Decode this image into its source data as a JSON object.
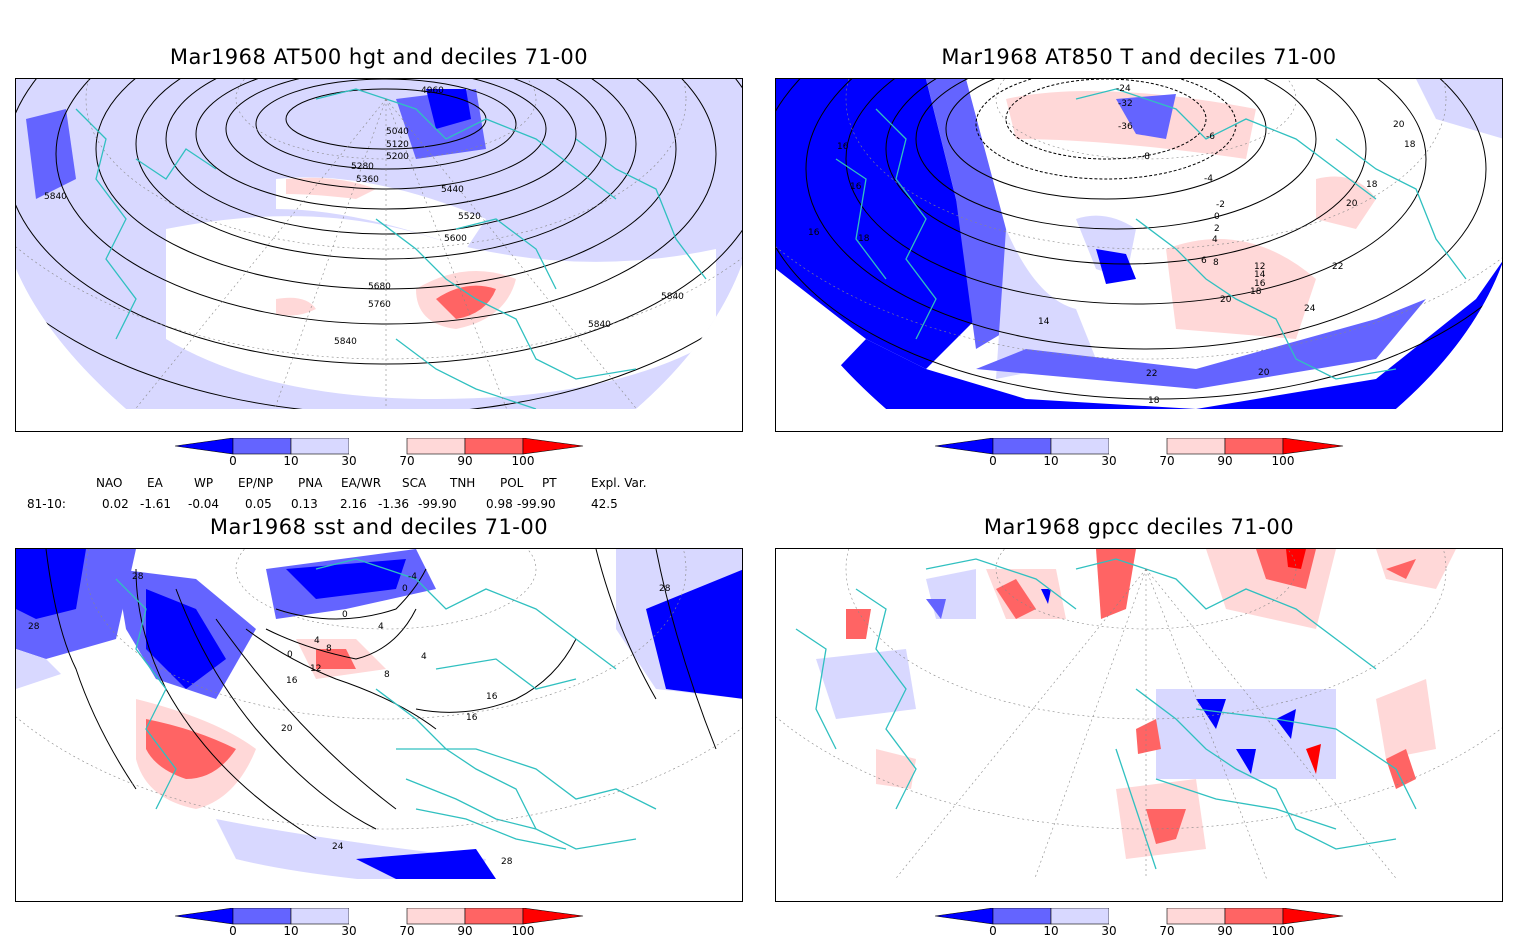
{
  "panels": [
    {
      "id": "p1",
      "title": "Mar1968 AT500 hgt and deciles 71-00",
      "contour_labels": [
        "4960",
        "5040",
        "5120",
        "5200",
        "5280",
        "5360",
        "5440",
        "5520",
        "5600",
        "5680",
        "5760",
        "5840",
        "5840",
        "5840",
        "5840"
      ]
    },
    {
      "id": "p2",
      "title": "Mar1968 AT850 T and deciles 71-00",
      "contour_labels": [
        "-24",
        "-32",
        "-36",
        "-8",
        "-6",
        "-4",
        "-2",
        "0",
        "2",
        "4",
        "6",
        "8",
        "12",
        "14",
        "16",
        "18",
        "20",
        "16",
        "16",
        "16",
        "18",
        "18",
        "18",
        "20",
        "20",
        "22",
        "24",
        "14",
        "22",
        "20",
        "18"
      ]
    },
    {
      "id": "p3",
      "title": "Mar1968 sst and deciles 71-00",
      "contour_labels": [
        "28",
        "28",
        "28",
        "28",
        "0",
        "0",
        "4",
        "8",
        "12",
        "16",
        "20",
        "24",
        "0",
        "4",
        "8",
        "16",
        "16",
        "-4",
        "4"
      ]
    },
    {
      "id": "p4",
      "title": "Mar1968 gpcc deciles 71-00",
      "contour_labels": []
    }
  ],
  "colorbar": {
    "ticks": [
      "0",
      "10",
      "30",
      "70",
      "90",
      "100"
    ],
    "colors": {
      "strong_neg": "#0000ff",
      "mid_neg": "#6464ff",
      "weak_neg": "#d8d8ff",
      "neutral": "#ffffff",
      "weak_pos": "#ffd8d8",
      "mid_pos": "#ff6464",
      "strong_pos": "#ff0000"
    }
  },
  "indices": {
    "headers": [
      "NAO",
      "EA",
      "WP",
      "EP/NP",
      "PNA",
      "EA/WR",
      "SCA",
      "TNH",
      "POL",
      "PT",
      "Expl. Var."
    ],
    "row_label": "81-10:",
    "values": [
      "0.02",
      "-1.61",
      "-0.04",
      "0.05",
      "0.13",
      "2.16",
      "-1.36",
      "-99.90",
      "0.98",
      "-99.90",
      "42.5"
    ]
  },
  "map_colors": {
    "coast": "#30c0c0",
    "contour": "#000000",
    "grid": "#888888"
  }
}
